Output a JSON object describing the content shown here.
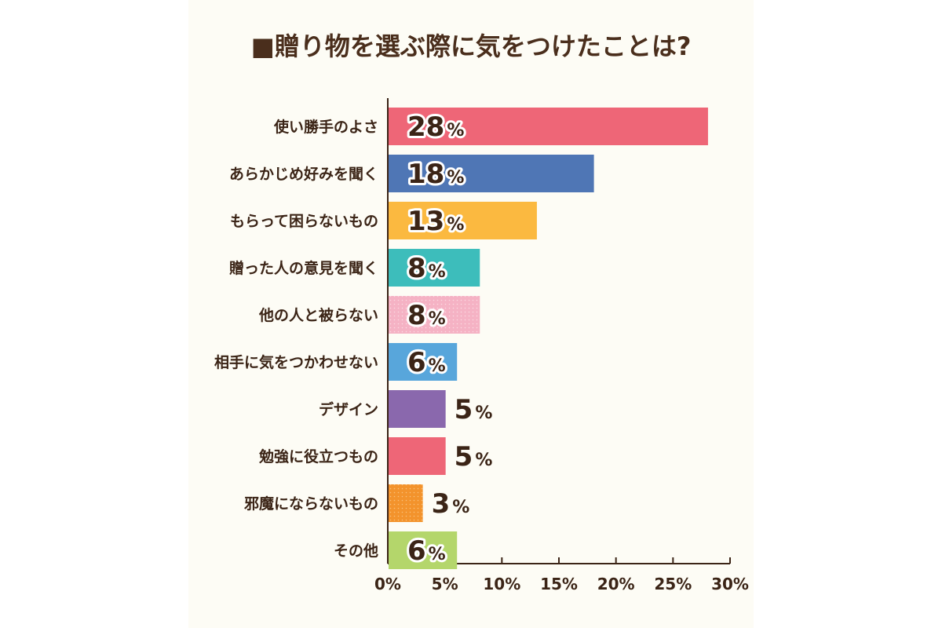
{
  "chart_data": {
    "type": "bar",
    "orientation": "horizontal",
    "title": "■贈り物を選ぶ際に気をつけたことは?",
    "categories": [
      "使い勝手のよさ",
      "あらかじめ好みを聞く",
      "もらって困らないもの",
      "贈った人の意見を聞く",
      "他の人と被らない",
      "相手に気をつかわせない",
      "デザイン",
      "勉強に役立つもの",
      "邪魔にならないもの",
      "その他"
    ],
    "values": [
      28,
      18,
      13,
      8,
      8,
      6,
      5,
      5,
      3,
      6
    ],
    "value_labels": [
      "28",
      "18",
      "13",
      "8",
      "8",
      "6",
      "5",
      "5",
      "3",
      "6"
    ],
    "unit": "%",
    "bar_colors": [
      "#ee6677",
      "#4f76b5",
      "#fbb940",
      "#3dbdbb",
      "#f5b2c4",
      "#58a6db",
      "#8a68ad",
      "#ee6677",
      "#f3932c",
      "#b4d66b"
    ],
    "xlim": [
      0,
      30
    ],
    "xticks": [
      "0%",
      "5%",
      "10%",
      "15%",
      "20%",
      "25%",
      "30%"
    ],
    "xtick_values": [
      0,
      5,
      10,
      15,
      20,
      25,
      30
    ],
    "grid": false,
    "legend": "none"
  }
}
